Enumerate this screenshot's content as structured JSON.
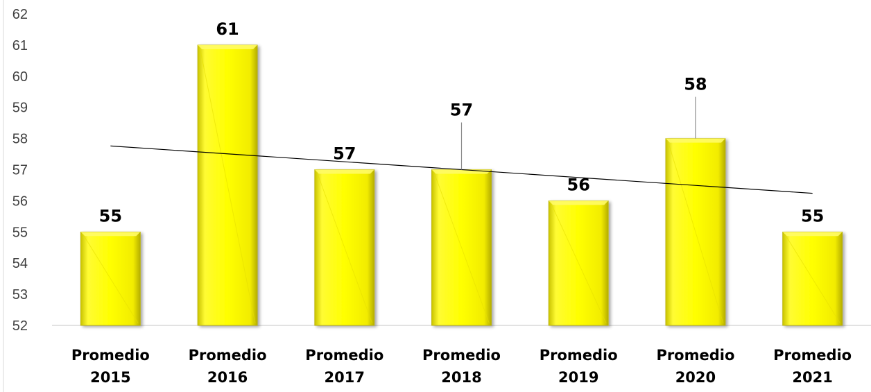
{
  "chart_data": {
    "type": "bar",
    "title": "",
    "xlabel": "",
    "ylabel": "",
    "ylim": [
      52,
      62
    ],
    "yticks": [
      52,
      53,
      54,
      55,
      56,
      57,
      58,
      59,
      60,
      61,
      62
    ],
    "categories": [
      [
        "Promedio",
        "2015"
      ],
      [
        "Promedio",
        "2016"
      ],
      [
        "Promedio",
        "2017"
      ],
      [
        "Promedio",
        "2018"
      ],
      [
        "Promedio",
        "2019"
      ],
      [
        "Promedio",
        "2020"
      ],
      [
        "Promedio",
        "2021"
      ]
    ],
    "values": [
      55,
      61,
      57,
      57,
      56,
      58,
      55
    ],
    "data_labels": [
      "55",
      "61",
      "57",
      "57",
      "56",
      "58",
      "55"
    ],
    "trendline": {
      "type": "linear",
      "start": 57.76,
      "end": 56.24
    },
    "grid": false,
    "legend": "none",
    "colors": {
      "bar": "#ffff00",
      "bar_edge": "#b8b000",
      "trendline": "#000000",
      "axis": "#d9d9d9"
    }
  }
}
